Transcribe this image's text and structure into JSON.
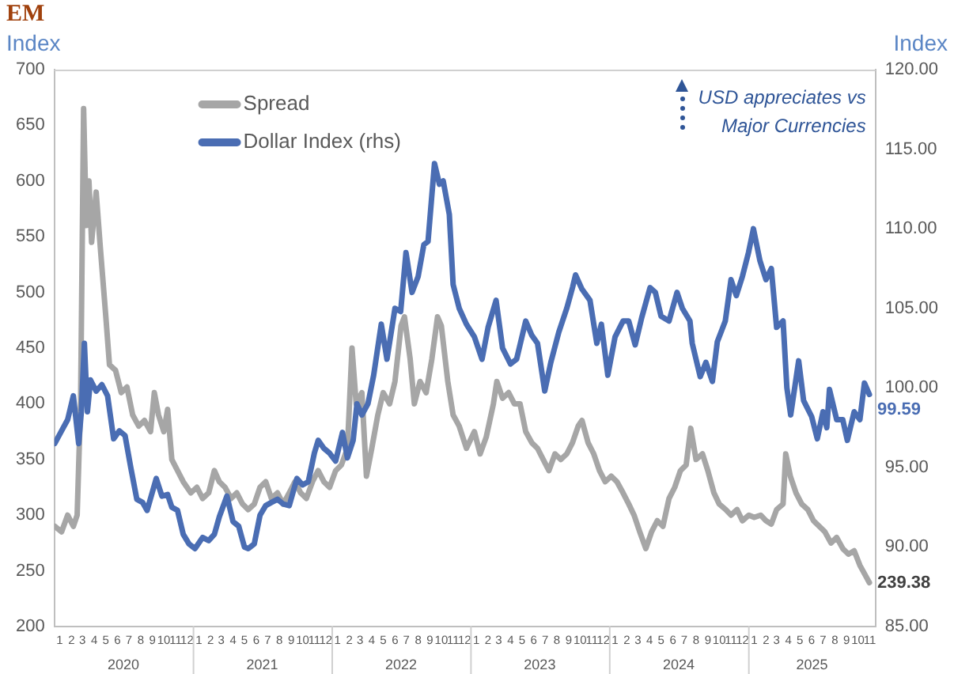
{
  "chart_data": {
    "type": "line",
    "title": "EM",
    "ylabel": "Index",
    "y2label": "Index",
    "xlim": [
      "2020-01-01",
      "2025-11-30"
    ],
    "xticks": [
      {
        "value": "2020-01-15",
        "label": "1"
      },
      {
        "value": "2020-02-15",
        "label": "2"
      },
      {
        "value": "2020-03-15",
        "label": "3"
      },
      {
        "value": "2020-04-15",
        "label": "4"
      },
      {
        "value": "2020-05-15",
        "label": "5"
      },
      {
        "value": "2020-06-15",
        "label": "6"
      },
      {
        "value": "2020-07-15",
        "label": "7"
      },
      {
        "value": "2020-08-15",
        "label": "8"
      },
      {
        "value": "2020-09-15",
        "label": "9"
      },
      {
        "value": "2020-10-15",
        "label": "10"
      },
      {
        "value": "2020-11-15",
        "label": "11"
      },
      {
        "value": "2020-12-15",
        "label": "12"
      },
      {
        "value": "2021-01-15",
        "label": "1"
      },
      {
        "value": "2021-02-15",
        "label": "2"
      },
      {
        "value": "2021-03-15",
        "label": "3"
      },
      {
        "value": "2021-04-15",
        "label": "4"
      },
      {
        "value": "2021-05-15",
        "label": "5"
      },
      {
        "value": "2021-06-15",
        "label": "6"
      },
      {
        "value": "2021-07-15",
        "label": "7"
      },
      {
        "value": "2021-08-15",
        "label": "8"
      },
      {
        "value": "2021-09-15",
        "label": "9"
      },
      {
        "value": "2021-10-15",
        "label": "10"
      },
      {
        "value": "2021-11-15",
        "label": "11"
      },
      {
        "value": "2021-12-15",
        "label": "12"
      },
      {
        "value": "2022-01-15",
        "label": "1"
      },
      {
        "value": "2022-02-15",
        "label": "2"
      },
      {
        "value": "2022-03-15",
        "label": "3"
      },
      {
        "value": "2022-04-15",
        "label": "4"
      },
      {
        "value": "2022-05-15",
        "label": "5"
      },
      {
        "value": "2022-06-15",
        "label": "6"
      },
      {
        "value": "2022-07-15",
        "label": "7"
      },
      {
        "value": "2022-08-15",
        "label": "8"
      },
      {
        "value": "2022-09-15",
        "label": "9"
      },
      {
        "value": "2022-10-15",
        "label": "10"
      },
      {
        "value": "2022-11-15",
        "label": "11"
      },
      {
        "value": "2022-12-15",
        "label": "12"
      },
      {
        "value": "2023-01-15",
        "label": "1"
      },
      {
        "value": "2023-02-15",
        "label": "2"
      },
      {
        "value": "2023-03-15",
        "label": "3"
      },
      {
        "value": "2023-04-15",
        "label": "4"
      },
      {
        "value": "2023-05-15",
        "label": "5"
      },
      {
        "value": "2023-06-15",
        "label": "6"
      },
      {
        "value": "2023-07-15",
        "label": "7"
      },
      {
        "value": "2023-08-15",
        "label": "8"
      },
      {
        "value": "2023-09-15",
        "label": "9"
      },
      {
        "value": "2023-10-15",
        "label": "10"
      },
      {
        "value": "2023-11-15",
        "label": "11"
      },
      {
        "value": "2023-12-15",
        "label": "12"
      },
      {
        "value": "2024-01-15",
        "label": "1"
      },
      {
        "value": "2024-02-15",
        "label": "2"
      },
      {
        "value": "2024-03-15",
        "label": "3"
      },
      {
        "value": "2024-04-15",
        "label": "4"
      },
      {
        "value": "2024-05-15",
        "label": "5"
      },
      {
        "value": "2024-06-15",
        "label": "6"
      },
      {
        "value": "2024-07-15",
        "label": "7"
      },
      {
        "value": "2024-08-15",
        "label": "8"
      },
      {
        "value": "2024-09-15",
        "label": "9"
      },
      {
        "value": "2024-10-15",
        "label": "10"
      },
      {
        "value": "2024-11-15",
        "label": "11"
      },
      {
        "value": "2024-12-15",
        "label": "12"
      },
      {
        "value": "2025-01-15",
        "label": "1"
      },
      {
        "value": "2025-02-15",
        "label": "2"
      },
      {
        "value": "2025-03-15",
        "label": "3"
      },
      {
        "value": "2025-04-15",
        "label": "4"
      },
      {
        "value": "2025-05-15",
        "label": "5"
      },
      {
        "value": "2025-06-15",
        "label": "6"
      },
      {
        "value": "2025-07-15",
        "label": "7"
      },
      {
        "value": "2025-08-15",
        "label": "8"
      },
      {
        "value": "2025-09-15",
        "label": "9"
      },
      {
        "value": "2025-10-15",
        "label": "10"
      },
      {
        "value": "2025-11-15",
        "label": "11"
      }
    ],
    "ylim": [
      200,
      700
    ],
    "yticks": [
      200,
      250,
      300,
      350,
      400,
      450,
      500,
      550,
      600,
      650,
      700
    ],
    "y2lim": [
      85,
      120
    ],
    "y2ticks": [
      {
        "value": 85,
        "label": "85.00"
      },
      {
        "value": 90,
        "label": "90.00"
      },
      {
        "value": 95,
        "label": "95.00"
      },
      {
        "value": 100,
        "label": "100.00"
      },
      {
        "value": 105,
        "label": "105.00"
      },
      {
        "value": 110,
        "label": "110.00"
      },
      {
        "value": 115,
        "label": "115.00"
      },
      {
        "value": 120,
        "label": "120.00"
      }
    ],
    "grid": false,
    "legend": "top left",
    "annotations": [
      "USD appreciates vs Major Currencies",
      "2020",
      "2021",
      "2022",
      "2023",
      "2024",
      "2025"
    ],
    "series": [
      {
        "name": "Spread",
        "color": "#a6a6a6",
        "x": [
          "2020-01-02",
          "2020-01-20",
          "2020-02-05",
          "2020-02-20",
          "2020-03-01",
          "2020-03-10",
          "2020-03-18",
          "2020-03-25",
          "2020-04-01",
          "2020-04-08",
          "2020-04-20",
          "2020-05-01",
          "2020-05-15",
          "2020-05-25",
          "2020-06-10",
          "2020-06-25",
          "2020-07-10",
          "2020-07-25",
          "2020-08-10",
          "2020-08-25",
          "2020-09-10",
          "2020-09-20",
          "2020-10-01",
          "2020-10-15",
          "2020-10-25",
          "2020-11-05",
          "2020-11-20",
          "2020-12-05",
          "2020-12-25",
          "2021-01-10",
          "2021-01-25",
          "2021-02-10",
          "2021-02-25",
          "2021-03-10",
          "2021-03-25",
          "2021-04-10",
          "2021-04-25",
          "2021-05-10",
          "2021-05-25",
          "2021-06-10",
          "2021-06-25",
          "2021-07-10",
          "2021-07-25",
          "2021-08-10",
          "2021-08-25",
          "2021-09-10",
          "2021-09-25",
          "2021-10-10",
          "2021-10-25",
          "2021-11-10",
          "2021-11-25",
          "2021-12-10",
          "2021-12-25",
          "2022-01-10",
          "2022-01-25",
          "2022-02-10",
          "2022-02-22",
          "2022-03-05",
          "2022-03-20",
          "2022-04-01",
          "2022-04-15",
          "2022-05-01",
          "2022-05-15",
          "2022-06-01",
          "2022-06-15",
          "2022-07-01",
          "2022-07-10",
          "2022-07-25",
          "2022-08-05",
          "2022-08-20",
          "2022-09-05",
          "2022-09-20",
          "2022-10-05",
          "2022-10-15",
          "2022-11-01",
          "2022-11-15",
          "2022-12-01",
          "2022-12-20",
          "2023-01-10",
          "2023-01-25",
          "2023-02-10",
          "2023-03-01",
          "2023-03-10",
          "2023-03-25",
          "2023-04-10",
          "2023-04-25",
          "2023-05-10",
          "2023-05-25",
          "2023-06-10",
          "2023-06-25",
          "2023-07-10",
          "2023-07-25",
          "2023-08-10",
          "2023-08-25",
          "2023-09-10",
          "2023-09-25",
          "2023-10-10",
          "2023-10-20",
          "2023-11-05",
          "2023-11-20",
          "2023-12-05",
          "2023-12-20",
          "2024-01-05",
          "2024-01-20",
          "2024-02-05",
          "2024-02-20",
          "2024-03-05",
          "2024-03-20",
          "2024-04-05",
          "2024-04-20",
          "2024-05-05",
          "2024-05-20",
          "2024-06-05",
          "2024-06-20",
          "2024-07-05",
          "2024-07-20",
          "2024-08-01",
          "2024-08-15",
          "2024-09-01",
          "2024-09-15",
          "2024-10-01",
          "2024-10-15",
          "2024-11-01",
          "2024-11-15",
          "2024-12-01",
          "2024-12-15",
          "2025-01-01",
          "2025-01-15",
          "2025-02-01",
          "2025-02-15",
          "2025-03-01",
          "2025-03-15",
          "2025-04-01",
          "2025-04-08",
          "2025-04-20",
          "2025-05-05",
          "2025-05-20",
          "2025-06-05",
          "2025-06-20",
          "2025-07-05",
          "2025-07-20",
          "2025-08-05",
          "2025-08-20",
          "2025-09-05",
          "2025-09-20",
          "2025-10-05",
          "2025-10-20",
          "2025-11-05",
          "2025-11-14"
        ],
        "values": [
          290,
          285,
          300,
          290,
          300,
          400,
          665,
          560,
          600,
          545,
          590,
          540,
          480,
          435,
          430,
          410,
          415,
          390,
          380,
          385,
          375,
          410,
          390,
          375,
          395,
          350,
          340,
          330,
          320,
          325,
          315,
          320,
          340,
          330,
          325,
          315,
          320,
          310,
          305,
          310,
          325,
          330,
          315,
          320,
          310,
          320,
          330,
          320,
          315,
          330,
          340,
          330,
          325,
          340,
          345,
          360,
          450,
          400,
          410,
          335,
          360,
          390,
          410,
          400,
          420,
          470,
          478,
          440,
          400,
          420,
          410,
          440,
          478,
          470,
          420,
          390,
          380,
          360,
          375,
          355,
          370,
          400,
          420,
          405,
          410,
          400,
          400,
          375,
          365,
          360,
          350,
          340,
          355,
          350,
          355,
          365,
          380,
          385,
          365,
          355,
          340,
          330,
          335,
          330,
          320,
          310,
          300,
          285,
          270,
          285,
          295,
          290,
          315,
          325,
          340,
          345,
          378,
          350,
          355,
          340,
          320,
          310,
          305,
          300,
          305,
          295,
          300,
          298,
          300,
          295,
          292,
          305,
          310,
          355,
          335,
          320,
          310,
          305,
          295,
          290,
          285,
          275,
          280,
          270,
          265,
          268,
          255,
          245,
          239.38
        ],
        "value_labels": [
          null,
          null,
          null,
          null,
          null,
          null,
          null,
          null,
          null,
          null,
          null,
          null,
          null,
          null,
          null,
          null,
          null,
          null,
          null,
          null,
          null,
          null,
          null,
          null,
          null,
          null,
          null,
          null,
          null,
          null,
          null,
          null,
          null,
          null,
          null,
          null,
          null,
          null,
          null,
          null,
          null,
          null,
          null,
          null,
          null,
          null,
          null,
          null,
          null,
          null,
          null,
          null,
          null,
          null,
          null,
          null,
          null,
          null,
          null,
          null,
          null,
          null,
          null,
          null,
          null,
          null,
          null,
          null,
          null,
          null,
          null,
          null,
          null,
          null,
          null,
          null,
          null,
          null,
          null,
          null,
          null,
          null,
          null,
          null,
          null,
          null,
          null,
          null,
          null,
          null,
          null,
          null,
          null,
          null,
          null,
          null,
          null,
          null,
          null,
          null,
          null,
          null,
          null,
          null,
          null,
          null,
          null,
          null,
          null,
          null,
          null,
          null,
          null,
          null,
          null,
          null,
          null,
          null,
          null,
          null,
          null,
          null,
          null,
          null,
          null,
          null,
          null,
          null,
          null,
          null,
          null,
          null,
          null,
          null,
          null,
          null,
          null,
          null,
          null,
          null,
          null,
          null,
          null,
          null,
          null,
          null,
          null,
          null,
          "239.38"
        ]
      },
      {
        "name": "Dollar Index (rhs)",
        "color": "#4a6db3",
        "axis": "y2",
        "x": [
          "2020-01-02",
          "2020-01-20",
          "2020-02-05",
          "2020-02-20",
          "2020-03-05",
          "2020-03-12",
          "2020-03-20",
          "2020-03-28",
          "2020-04-05",
          "2020-04-20",
          "2020-05-05",
          "2020-05-20",
          "2020-06-05",
          "2020-06-20",
          "2020-07-05",
          "2020-07-20",
          "2020-08-05",
          "2020-08-20",
          "2020-09-01",
          "2020-09-25",
          "2020-10-10",
          "2020-10-25",
          "2020-11-05",
          "2020-11-20",
          "2020-12-05",
          "2020-12-20",
          "2021-01-05",
          "2021-01-25",
          "2021-02-10",
          "2021-02-25",
          "2021-03-10",
          "2021-03-30",
          "2021-04-15",
          "2021-04-30",
          "2021-05-15",
          "2021-05-25",
          "2021-06-10",
          "2021-06-25",
          "2021-07-10",
          "2021-07-25",
          "2021-08-10",
          "2021-08-25",
          "2021-09-10",
          "2021-09-30",
          "2021-10-15",
          "2021-10-30",
          "2021-11-15",
          "2021-11-25",
          "2021-12-10",
          "2021-12-25",
          "2022-01-10",
          "2022-01-28",
          "2022-02-10",
          "2022-02-25",
          "2022-03-07",
          "2022-03-20",
          "2022-04-05",
          "2022-04-20",
          "2022-05-10",
          "2022-05-25",
          "2022-06-15",
          "2022-06-30",
          "2022-07-14",
          "2022-07-30",
          "2022-08-15",
          "2022-08-30",
          "2022-09-10",
          "2022-09-27",
          "2022-10-10",
          "2022-10-20",
          "2022-11-05",
          "2022-11-15",
          "2022-12-01",
          "2022-12-20",
          "2023-01-10",
          "2023-01-30",
          "2023-02-15",
          "2023-03-08",
          "2023-03-25",
          "2023-04-15",
          "2023-05-01",
          "2023-05-25",
          "2023-06-10",
          "2023-06-25",
          "2023-07-14",
          "2023-07-30",
          "2023-08-20",
          "2023-09-10",
          "2023-09-25",
          "2023-10-03",
          "2023-10-20",
          "2023-11-10",
          "2023-11-28",
          "2023-12-10",
          "2023-12-27",
          "2024-01-15",
          "2024-02-05",
          "2024-02-20",
          "2024-03-08",
          "2024-03-25",
          "2024-04-16",
          "2024-04-30",
          "2024-05-15",
          "2024-06-05",
          "2024-06-26",
          "2024-07-10",
          "2024-07-30",
          "2024-08-05",
          "2024-08-26",
          "2024-09-10",
          "2024-09-27",
          "2024-10-10",
          "2024-10-31",
          "2024-11-15",
          "2024-11-29",
          "2024-12-15",
          "2024-12-31",
          "2025-01-13",
          "2025-01-30",
          "2025-02-15",
          "2025-03-01",
          "2025-03-15",
          "2025-04-01",
          "2025-04-11",
          "2025-04-21",
          "2025-05-12",
          "2025-05-25",
          "2025-06-15",
          "2025-06-30",
          "2025-07-15",
          "2025-07-25",
          "2025-08-01",
          "2025-08-20",
          "2025-09-05",
          "2025-09-17",
          "2025-10-05",
          "2025-10-20",
          "2025-11-01",
          "2025-11-14"
        ],
        "values": [
          96.5,
          97.3,
          98.0,
          99.5,
          96.5,
          98.5,
          102.8,
          98.5,
          100.5,
          99.8,
          100.2,
          99.5,
          96.8,
          97.3,
          97.0,
          95.0,
          93.0,
          92.8,
          92.3,
          94.3,
          93.2,
          93.3,
          92.5,
          92.3,
          90.8,
          90.2,
          89.9,
          90.6,
          90.4,
          90.8,
          91.9,
          93.2,
          91.6,
          91.3,
          90.0,
          89.9,
          90.2,
          92.0,
          92.6,
          92.8,
          93.0,
          92.7,
          92.6,
          94.3,
          93.9,
          94.1,
          95.9,
          96.7,
          96.2,
          95.9,
          95.4,
          97.2,
          95.6,
          96.7,
          99.0,
          98.3,
          99.0,
          100.8,
          104.0,
          101.8,
          105.0,
          104.8,
          108.5,
          106.0,
          107.0,
          109.0,
          109.2,
          114.1,
          112.8,
          113.0,
          110.9,
          106.5,
          105.0,
          104.0,
          103.2,
          101.8,
          103.8,
          105.5,
          102.5,
          101.5,
          101.8,
          104.2,
          103.3,
          102.8,
          99.8,
          101.6,
          103.5,
          105.0,
          106.3,
          107.1,
          106.2,
          105.5,
          102.8,
          104.0,
          100.8,
          103.2,
          104.2,
          104.2,
          102.7,
          104.4,
          106.3,
          106.0,
          104.5,
          104.2,
          106.0,
          105.0,
          104.2,
          102.8,
          100.7,
          101.6,
          100.4,
          102.9,
          104.2,
          106.8,
          105.8,
          107.0,
          108.5,
          110.0,
          108.0,
          106.8,
          107.5,
          103.8,
          104.2,
          100.0,
          98.3,
          101.7,
          99.2,
          98.2,
          96.8,
          98.5,
          97.5,
          99.9,
          98.0,
          98.0,
          96.7,
          98.5,
          98.0,
          100.3,
          99.59
        ],
        "value_labels": [
          null,
          null,
          null,
          null,
          null,
          null,
          null,
          null,
          null,
          null,
          null,
          null,
          null,
          null,
          null,
          null,
          null,
          null,
          null,
          null,
          null,
          null,
          null,
          null,
          null,
          null,
          null,
          null,
          null,
          null,
          null,
          null,
          null,
          null,
          null,
          null,
          null,
          null,
          null,
          null,
          null,
          null,
          null,
          null,
          null,
          null,
          null,
          null,
          null,
          null,
          null,
          null,
          null,
          null,
          null,
          null,
          null,
          null,
          null,
          null,
          null,
          null,
          null,
          null,
          null,
          null,
          null,
          null,
          null,
          null,
          null,
          null,
          null,
          null,
          null,
          null,
          null,
          null,
          null,
          null,
          null,
          null,
          null,
          null,
          null,
          null,
          null,
          null,
          null,
          null,
          null,
          null,
          null,
          null,
          null,
          null,
          null,
          null,
          null,
          null,
          null,
          null,
          null,
          null,
          null,
          null,
          null,
          null,
          null,
          null,
          null,
          null,
          null,
          null,
          null,
          null,
          null,
          null,
          null,
          null,
          null,
          null,
          null,
          null,
          null,
          null,
          null,
          null,
          null,
          null,
          null,
          null,
          null,
          null,
          null,
          null,
          null,
          null,
          "99.59"
        ]
      }
    ]
  }
}
